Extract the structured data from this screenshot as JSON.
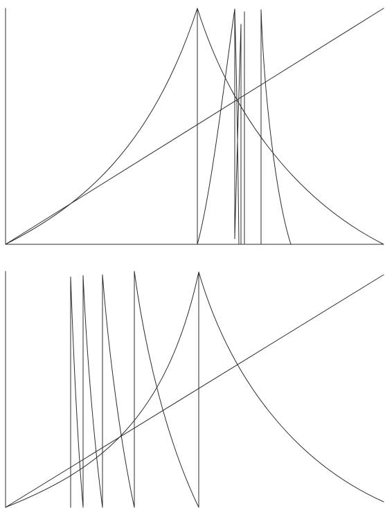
{
  "colors": {
    "background": "#ffffff",
    "stroke": "#2b2b2b"
  },
  "panels": [
    {
      "id": "top",
      "axes": {
        "x_visible": true,
        "y_visible": true
      },
      "curves": [
        {
          "id": "diagonal",
          "kind": "line"
        },
        {
          "id": "peak-curve",
          "kind": "cusp"
        },
        {
          "id": "sawtooth-cluster",
          "kind": "sawtooth",
          "teeth": 4
        }
      ]
    },
    {
      "id": "bottom",
      "axes": {
        "x_visible": false,
        "y_visible": true
      },
      "curves": [
        {
          "id": "diagonal",
          "kind": "line"
        },
        {
          "id": "peak-curve",
          "kind": "cusp"
        },
        {
          "id": "sawtooth-cluster",
          "kind": "sawtooth",
          "teeth": 4
        }
      ]
    }
  ]
}
